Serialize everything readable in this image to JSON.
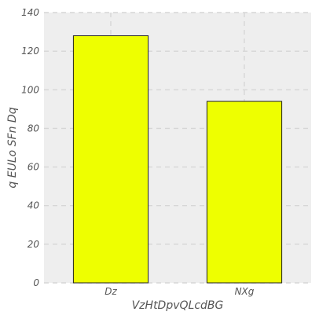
{
  "chart_data": {
    "type": "bar",
    "categories": [
      "Dz",
      "NXg"
    ],
    "values": [
      128,
      94
    ],
    "xlabel": "VzHtDpvQLcdBG",
    "ylabel": "q EULo SFn Dq",
    "ylim": [
      0,
      140
    ],
    "yticks": [
      "0",
      "20",
      "40",
      "60",
      "80",
      "100",
      "120",
      "140"
    ],
    "grid": true,
    "colors": {
      "bar_fill": "#eeff00",
      "bar_stroke": "#222222",
      "plot_background": "#eeeeee",
      "grid": "#d6d6d6"
    }
  }
}
